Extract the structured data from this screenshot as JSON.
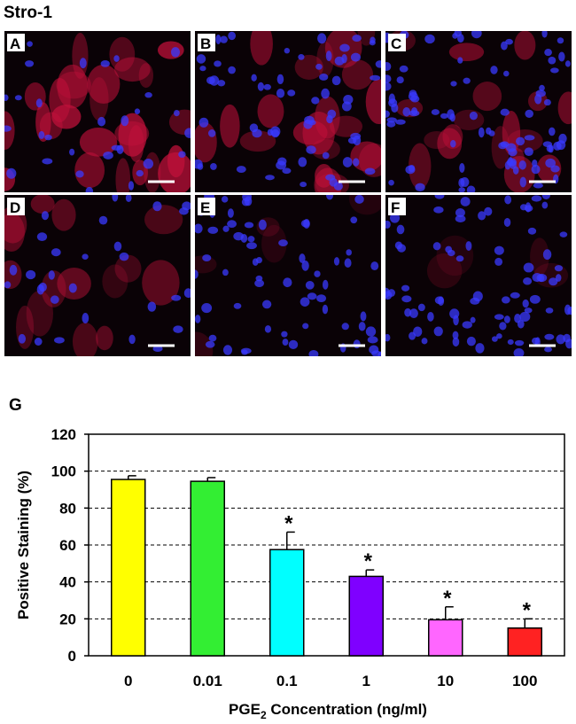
{
  "title": "Stro-1",
  "panels": [
    "A",
    "B",
    "C",
    "D",
    "E",
    "F"
  ],
  "chart_data": {
    "type": "bar",
    "panel_label": "G",
    "categories": [
      "0",
      "0.01",
      "0.1",
      "1",
      "10",
      "100"
    ],
    "values": [
      95.5,
      94.5,
      57.5,
      43,
      19.5,
      15
    ],
    "errors": [
      2,
      2,
      9.5,
      3.5,
      7,
      5
    ],
    "significance": [
      null,
      null,
      "*",
      "*",
      "*",
      "*"
    ],
    "colors": [
      "#ffff00",
      "#33ee33",
      "#00ffff",
      "#7f00ff",
      "#ff66ff",
      "#ff2222"
    ],
    "y_label": "Positive Staining (%)",
    "x_label": [
      "PGE",
      "2",
      " Concentration (ng/ml)"
    ],
    "ylim": [
      0,
      120
    ],
    "yticks": [
      0,
      20,
      40,
      60,
      80,
      100,
      120
    ],
    "grid": true
  }
}
